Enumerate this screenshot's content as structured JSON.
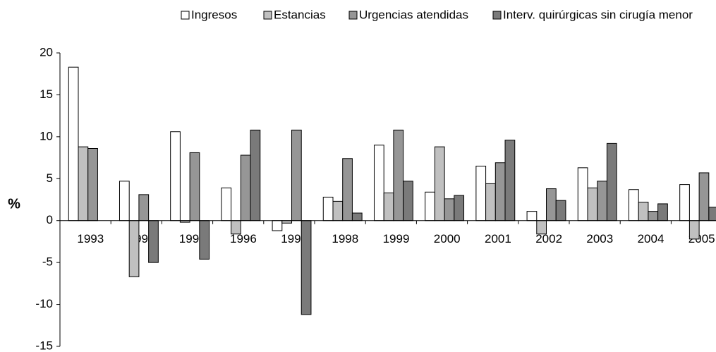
{
  "chart_data": {
    "type": "bar",
    "ylabel": "%",
    "categories": [
      "1993",
      "1994",
      "1995",
      "1996",
      "1997",
      "1998",
      "1999",
      "2000",
      "2001",
      "2002",
      "2003",
      "2004",
      "2005"
    ],
    "series": [
      {
        "name": "Ingresos",
        "color": "#ffffff",
        "values": [
          18.3,
          4.7,
          10.6,
          3.9,
          -1.2,
          2.8,
          9.0,
          3.4,
          6.5,
          1.1,
          6.3,
          3.7,
          4.3
        ]
      },
      {
        "name": "Estancias",
        "color": "#c0c0c0",
        "values": [
          8.8,
          -6.7,
          -0.2,
          -1.6,
          -0.3,
          2.3,
          3.3,
          8.8,
          4.4,
          -1.6,
          3.9,
          2.2,
          -2.2
        ]
      },
      {
        "name": "Urgencias atendidas",
        "color": "#969696",
        "values": [
          8.6,
          3.1,
          8.1,
          7.8,
          10.8,
          7.4,
          10.8,
          2.6,
          6.9,
          3.8,
          4.7,
          1.1,
          5.7
        ]
      },
      {
        "name": "Interv. quirúrgicas sin cirugía menor",
        "color": "#7a7a7a",
        "values": [
          null,
          -5.0,
          -4.6,
          10.8,
          -11.2,
          0.9,
          4.7,
          3.0,
          9.6,
          2.4,
          9.2,
          2.0,
          1.6
        ]
      }
    ],
    "ylim": [
      -15,
      20
    ],
    "yticks": [
      -15,
      -10,
      -5,
      0,
      5,
      10,
      15,
      20
    ],
    "grid": false,
    "legend": "top"
  }
}
